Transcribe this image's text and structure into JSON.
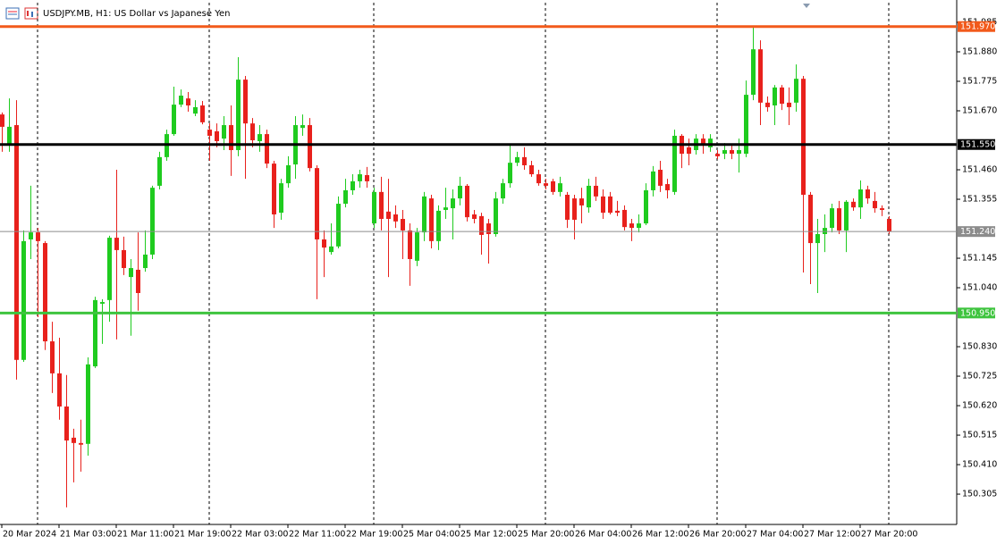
{
  "chart_data": {
    "type": "candlestick",
    "title": "USDJPY.MB, H1:  US Dollar vs Japanese Yen",
    "categories": [
      "20 Mar 2024",
      null,
      null,
      null,
      null,
      null,
      null,
      null,
      "21 Mar 03:00",
      null,
      null,
      null,
      null,
      null,
      null,
      null,
      "21 Mar 11:00",
      null,
      null,
      null,
      null,
      null,
      null,
      null,
      "21 Mar 19:00",
      null,
      null,
      null,
      null,
      null,
      null,
      null,
      "22 Mar 03:00",
      null,
      null,
      null,
      null,
      null,
      null,
      null,
      "22 Mar 11:00",
      null,
      null,
      null,
      null,
      null,
      null,
      null,
      "22 Mar 19:00",
      null,
      null,
      null,
      null,
      null,
      null,
      null,
      "25 Mar 04:00",
      null,
      null,
      null,
      null,
      null,
      null,
      null,
      "25 Mar 12:00",
      null,
      null,
      null,
      null,
      null,
      null,
      null,
      "25 Mar 20:00",
      null,
      null,
      null,
      null,
      null,
      null,
      null,
      "26 Mar 04:00",
      null,
      null,
      null,
      null,
      null,
      null,
      null,
      "26 Mar 12:00",
      null,
      null,
      null,
      null,
      null,
      null,
      null,
      "26 Mar 20:00",
      null,
      null,
      null,
      null,
      null,
      null,
      null,
      "27 Mar 04:00",
      null,
      null,
      null,
      null,
      null,
      null,
      null,
      "27 Mar 12:00",
      null,
      null,
      null,
      null,
      null,
      null,
      null,
      "27 Mar 20:00",
      null,
      null,
      null,
      null
    ],
    "open": [
      151.657,
      151.546,
      151.619,
      150.783,
      151.212,
      151.237,
      151.199,
      150.849,
      150.735,
      150.617,
      150.506,
      150.487,
      150.484,
      150.76,
      150.983,
      150.996,
      151.218,
      151.174,
      151.078,
      151.104,
      151.11,
      151.158,
      151.403,
      151.505,
      151.587,
      151.692,
      151.714,
      151.66,
      151.689,
      151.603,
      151.597,
      151.571,
      151.619,
      151.53,
      151.781,
      151.625,
      151.562,
      151.587,
      151.482,
      151.307,
      151.412,
      151.479,
      151.609,
      151.619,
      151.466,
      151.212,
      151.167,
      151.187,
      151.339,
      151.387,
      151.419,
      151.441,
      151.269,
      151.381,
      151.311,
      151.301,
      151.285,
      151.244,
      151.136,
      151.237,
      151.358,
      151.206,
      151.317,
      151.323,
      151.358,
      151.403,
      151.301,
      151.295,
      151.269,
      151.231,
      151.358,
      151.412,
      151.485,
      151.505,
      151.476,
      151.444,
      151.412,
      151.419,
      151.381,
      151.371,
      151.358,
      151.358,
      151.326,
      151.403,
      151.365,
      151.365,
      151.314,
      151.317,
      151.269,
      151.253,
      151.269,
      151.387,
      151.46,
      151.409,
      151.381,
      151.581,
      151.54,
      151.53,
      151.571,
      151.54,
      151.517,
      151.517,
      151.53,
      151.517,
      151.517,
      151.727,
      151.889,
      151.699,
      151.689,
      151.753,
      151.699,
      151.699,
      151.784,
      151.371,
      151.199,
      151.231,
      151.253,
      151.323,
      151.244,
      151.346,
      151.326,
      151.39,
      151.349,
      151.323,
      151.285
    ],
    "high": [
      151.664,
      151.714,
      151.708,
      151.244,
      151.403,
      151.253,
      151.206,
      150.919,
      150.862,
      150.729,
      150.538,
      150.57,
      150.792,
      151.008,
      150.999,
      151.225,
      151.46,
      151.222,
      151.142,
      151.237,
      151.244,
      151.403,
      151.524,
      151.603,
      151.756,
      151.746,
      151.737,
      151.708,
      151.705,
      151.625,
      151.625,
      151.651,
      151.689,
      151.861,
      151.794,
      151.644,
      151.619,
      151.603,
      151.492,
      151.428,
      151.508,
      151.651,
      151.657,
      151.644,
      151.476,
      151.244,
      151.269,
      151.365,
      151.428,
      151.444,
      151.46,
      151.47,
      151.396,
      151.435,
      151.428,
      151.333,
      151.317,
      151.269,
      151.253,
      151.381,
      151.371,
      151.333,
      151.396,
      151.39,
      151.435,
      151.409,
      151.317,
      151.307,
      151.285,
      151.381,
      151.428,
      151.549,
      151.524,
      151.54,
      151.492,
      151.46,
      151.428,
      151.428,
      151.435,
      151.381,
      151.371,
      151.396,
      151.428,
      151.435,
      151.39,
      151.381,
      151.349,
      151.333,
      151.285,
      151.301,
      151.412,
      151.473,
      151.492,
      151.428,
      151.603,
      151.587,
      151.571,
      151.587,
      151.587,
      151.587,
      151.53,
      151.555,
      151.549,
      151.571,
      151.778,
      151.969,
      151.921,
      151.721,
      151.762,
      151.762,
      151.753,
      151.835,
      151.794,
      151.381,
      151.285,
      151.301,
      151.339,
      151.349,
      151.352,
      151.358,
      151.422,
      151.403,
      151.381,
      151.333,
      151.295
    ],
    "low": [
      151.524,
      151.524,
      150.713,
      150.776,
      151.142,
      150.935,
      150.818,
      150.665,
      150.57,
      150.258,
      150.347,
      150.385,
      150.442,
      150.754,
      150.84,
      150.919,
      150.856,
      151.085,
      150.869,
      150.958,
      151.097,
      151.142,
      151.39,
      151.492,
      151.581,
      151.683,
      151.667,
      151.651,
      151.622,
      151.492,
      151.54,
      151.53,
      151.438,
      151.508,
      151.428,
      151.54,
      151.524,
      151.466,
      151.253,
      151.282,
      151.396,
      151.428,
      151.581,
      151.454,
      150.999,
      151.078,
      151.158,
      151.18,
      151.326,
      151.371,
      151.396,
      151.396,
      151.253,
      151.244,
      151.078,
      151.253,
      151.142,
      151.047,
      151.117,
      151.206,
      151.18,
      151.174,
      151.285,
      151.212,
      151.333,
      151.276,
      151.269,
      151.158,
      151.126,
      151.222,
      151.339,
      151.396,
      151.473,
      151.46,
      151.435,
      151.403,
      151.39,
      151.371,
      151.365,
      151.253,
      151.212,
      151.269,
      151.307,
      151.349,
      151.285,
      151.301,
      151.295,
      151.244,
      151.206,
      151.237,
      151.263,
      151.365,
      151.381,
      151.358,
      151.371,
      151.466,
      151.476,
      151.514,
      151.517,
      151.524,
      151.498,
      151.498,
      151.498,
      151.45,
      151.505,
      151.708,
      151.619,
      151.667,
      151.619,
      151.673,
      151.619,
      151.667,
      151.094,
      151.053,
      151.021,
      151.167,
      151.237,
      151.231,
      151.167,
      151.314,
      151.285,
      151.339,
      151.307,
      151.295,
      151.231
    ],
    "close": [
      151.613,
      151.613,
      150.783,
      151.206,
      151.237,
      151.206,
      150.849,
      150.735,
      150.617,
      150.496,
      150.487,
      150.481,
      150.767,
      150.996,
      150.989,
      151.218,
      151.174,
      151.11,
      151.11,
      151.021,
      151.158,
      151.396,
      151.505,
      151.587,
      151.692,
      151.724,
      151.689,
      151.683,
      151.629,
      151.581,
      151.562,
      151.619,
      151.53,
      151.781,
      151.625,
      151.565,
      151.587,
      151.482,
      151.301,
      151.412,
      151.476,
      151.619,
      151.619,
      151.466,
      151.212,
      151.183,
      151.187,
      151.339,
      151.387,
      151.419,
      151.444,
      151.419,
      151.381,
      151.285,
      151.285,
      151.276,
      151.244,
      151.142,
      151.237,
      151.365,
      151.206,
      151.314,
      151.326,
      151.358,
      151.403,
      151.291,
      151.285,
      151.228,
      151.231,
      151.358,
      151.412,
      151.485,
      151.505,
      151.476,
      151.444,
      151.412,
      151.403,
      151.381,
      151.412,
      151.282,
      151.282,
      151.333,
      151.403,
      151.365,
      151.307,
      151.307,
      151.307,
      151.256,
      151.253,
      151.269,
      151.387,
      151.454,
      151.403,
      151.387,
      151.581,
      151.517,
      151.517,
      151.571,
      151.546,
      151.571,
      151.508,
      151.53,
      151.517,
      151.53,
      151.727,
      151.889,
      151.699,
      151.683,
      151.753,
      151.695,
      151.683,
      151.784,
      151.371,
      151.199,
      151.231,
      151.253,
      151.323,
      151.244,
      151.346,
      151.326,
      151.39,
      151.358,
      151.323,
      151.317,
      151.24
    ],
    "up_color": "#1fcb1f",
    "down_color": "#e8211c",
    "levels": [
      {
        "value": 151.97,
        "label": "151.970",
        "color": "#f25a1b"
      },
      {
        "value": 151.55,
        "label": "151.550",
        "color": "#000000"
      },
      {
        "value": 151.24,
        "label": "151.240",
        "color": "#8c8c8c"
      },
      {
        "value": 150.95,
        "label": "150.950",
        "color": "#3ec43e"
      }
    ],
    "ylim": [
      150.197,
      152.055
    ],
    "yticks": [
      151.985,
      {
        "value": 151.88,
        "label": "151.880"
      },
      151.775,
      {
        "value": 151.67,
        "label": "151.670"
      },
      {
        "value": 151.46,
        "label": "151.460"
      },
      151.355,
      151.145,
      {
        "value": 151.04,
        "label": "151.040"
      },
      {
        "value": 150.83,
        "label": "150.830"
      },
      150.725,
      {
        "value": 150.62,
        "label": "150.620"
      },
      150.515,
      {
        "value": 150.41,
        "label": "150.410"
      },
      150.305
    ]
  }
}
